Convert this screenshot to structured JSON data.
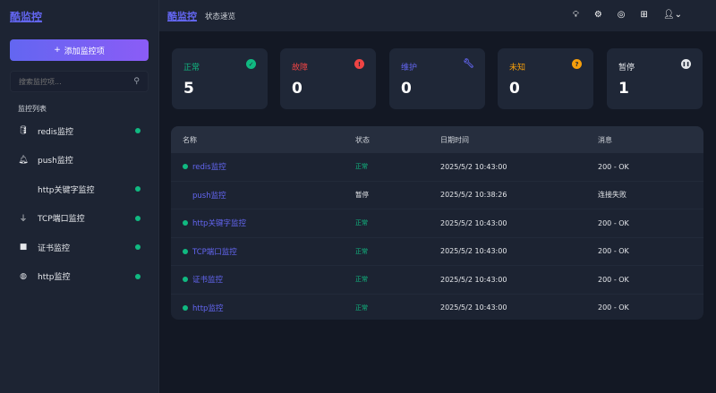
{
  "sidebar": {
    "logo": "酷监控",
    "add_button": "添加监控项",
    "search_placeholder": "搜索监控项...",
    "list_title": "监控列表",
    "items": [
      {
        "label": "redis监控",
        "icon": "database-icon",
        "active": true
      },
      {
        "label": "push监控",
        "icon": "bell-icon",
        "active": false
      },
      {
        "label": "http关键字监控",
        "icon": "code-icon",
        "active": true
      },
      {
        "label": "TCP端口监控",
        "icon": "plug-icon",
        "active": true
      },
      {
        "label": "证书监控",
        "icon": "cube-icon",
        "active": true
      },
      {
        "label": "http监控",
        "icon": "globe-icon",
        "active": true
      }
    ]
  },
  "header": {
    "brand": "酷监控",
    "subtitle": "状态速览",
    "icons": [
      "lightbulb-icon",
      "gear-icon",
      "github-icon",
      "grid-icon",
      "user-icon"
    ]
  },
  "cards": [
    {
      "label": "正常",
      "value": "5",
      "color": "#10b981",
      "icon": "✓"
    },
    {
      "label": "故障",
      "value": "0",
      "color": "#ef4444",
      "icon": "!"
    },
    {
      "label": "维护",
      "value": "0",
      "color": "#6366f1",
      "icon": "wrench"
    },
    {
      "label": "未知",
      "value": "0",
      "color": "#f59e0b",
      "icon": "?"
    },
    {
      "label": "暂停",
      "value": "1",
      "color": "#e5e7eb",
      "icon": "pause"
    }
  ],
  "table": {
    "headers": [
      "名称",
      "状态",
      "日期时间",
      "消息"
    ],
    "rows": [
      {
        "name": "redis监控",
        "status": "正常",
        "time": "2025/5/2 10:43:00",
        "message": "200 - OK",
        "up": true
      },
      {
        "name": "push监控",
        "status": "暂停",
        "time": "2025/5/2 10:38:26",
        "message": "连接失败",
        "up": false
      },
      {
        "name": "http关键字监控",
        "status": "正常",
        "time": "2025/5/2 10:43:00",
        "message": "200 - OK",
        "up": true
      },
      {
        "name": "TCP端口监控",
        "status": "正常",
        "time": "2025/5/2 10:43:00",
        "message": "200 - OK",
        "up": true
      },
      {
        "name": "证书监控",
        "status": "正常",
        "time": "2025/5/2 10:43:00",
        "message": "200 - OK",
        "up": true
      },
      {
        "name": "http监控",
        "status": "正常",
        "time": "2025/5/2 10:43:00",
        "message": "200 - OK",
        "up": true
      }
    ]
  }
}
